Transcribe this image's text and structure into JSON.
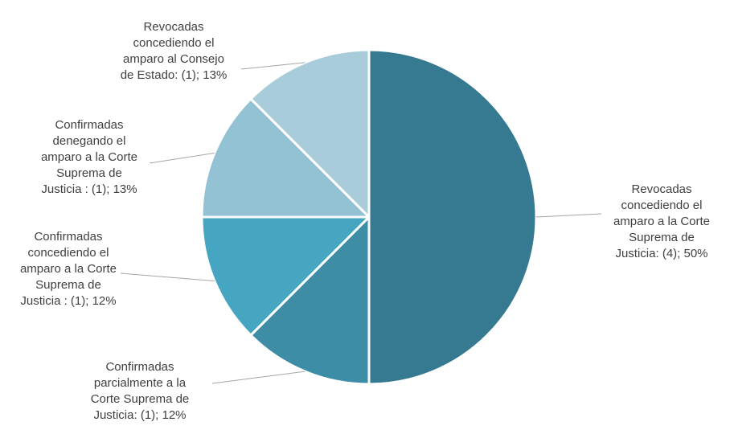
{
  "chart_data": {
    "type": "pie",
    "slices": [
      {
        "label": "Revocadas\nconcediendo el\namparo a la Corte\nSuprema de\nJusticia: (4); 50%",
        "count": 4,
        "percent": 50,
        "color": "#357A91"
      },
      {
        "label": "Confirmadas\nparcialmente a la\nCorte Suprema de\nJusticia: (1); 12%",
        "count": 1,
        "percent": 12,
        "color": "#3E8DA6"
      },
      {
        "label": "Confirmadas\nconcediendo el\namparo a la Corte\nSuprema de\nJusticia : (1); 12%",
        "count": 1,
        "percent": 12,
        "color": "#46A5C0"
      },
      {
        "label": "Confirmadas\ndenegando el\namparo a la Corte\nSuprema de\nJusticia : (1); 13%",
        "count": 1,
        "percent": 13,
        "color": "#93C2D4"
      },
      {
        "label": "Revocadas\nconcediendo el\namparo al Consejo\nde Estado: (1); 13%",
        "count": 1,
        "percent": 13,
        "color": "#A9CCDB"
      }
    ],
    "start_angle": "12 o'clock",
    "direction": "clockwise",
    "legend": "none",
    "labels": "outside with leader lines"
  }
}
